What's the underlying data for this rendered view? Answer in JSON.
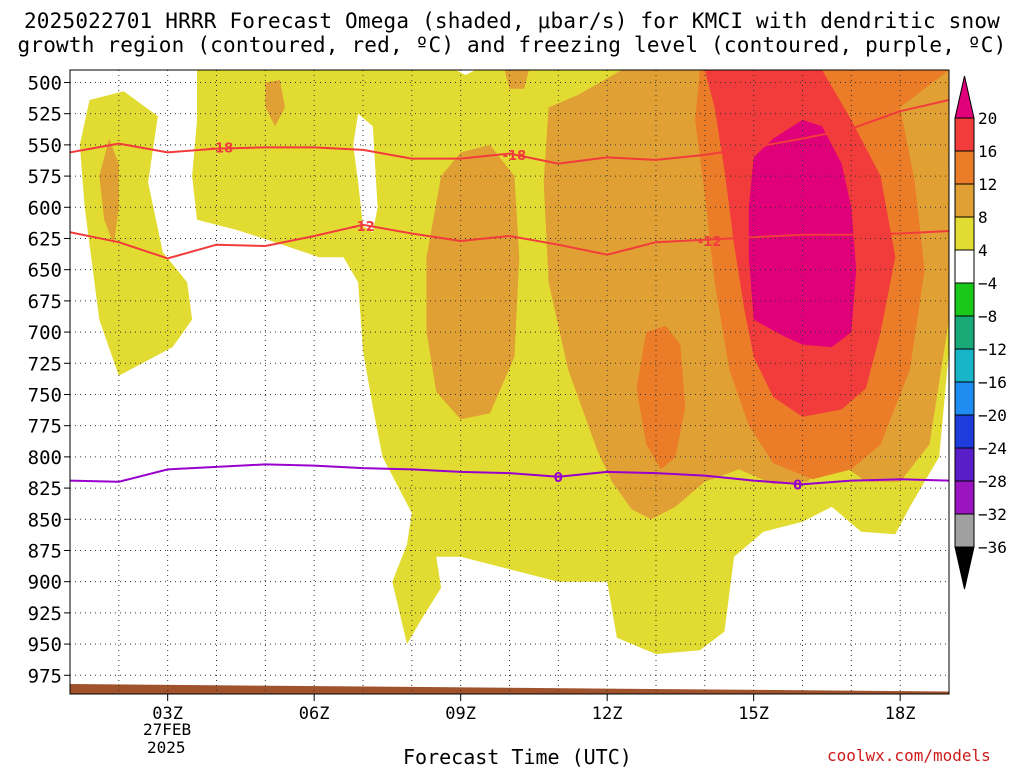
{
  "title": {
    "line1": "2025022701 HRRR Forecast Omega (shaded, μbar/s) for KMCI with dendritic snow",
    "line2": "growth region (contoured, red, ºC) and freezing level (contoured, purple, ºC)"
  },
  "x_axis_label": "Forecast Time (UTC)",
  "credit": "coolwx.com/models",
  "date": {
    "line1": "27FEB",
    "line2": "2025"
  },
  "colors": {
    "freezing_contour": "#9900cc",
    "snow_growth_contour": "#ff3333",
    "terrain": "#a0522d",
    "credit": "#cc1a1a"
  },
  "chart_data": {
    "type": "heatmap",
    "title": "2025022701 HRRR Forecast Omega (shaded, μbar/s) for KMCI with dendritic snow growth region (contoured, red, ºC) and freezing level (contoured, purple, ºC)",
    "xlabel": "Forecast Time (UTC)",
    "ylabel": "",
    "x_range_hours": [
      1,
      19
    ],
    "y_range_hpa": [
      490,
      990
    ],
    "y_scale": "linear, inverted (pressure decreasing upward)",
    "grid": true,
    "x_ticks": [
      {
        "hour": 3,
        "label": "03Z"
      },
      {
        "hour": 6,
        "label": "06Z"
      },
      {
        "hour": 9,
        "label": "09Z"
      },
      {
        "hour": 12,
        "label": "12Z"
      },
      {
        "hour": 15,
        "label": "15Z"
      },
      {
        "hour": 18,
        "label": "18Z"
      }
    ],
    "y_ticks": [
      500,
      525,
      550,
      575,
      600,
      625,
      650,
      675,
      700,
      725,
      750,
      775,
      800,
      825,
      850,
      875,
      900,
      925,
      950,
      975
    ],
    "colorbar": {
      "position": "right",
      "units": "μbar/s",
      "labels": [
        "20",
        "16",
        "12",
        "8",
        "4",
        "−4",
        "−8",
        "−12",
        "−16",
        "−20",
        "−24",
        "−28",
        "−32",
        "−36"
      ],
      "bins": [
        {
          "range": ">20",
          "color": "#e0007a"
        },
        {
          "range": "16 to 20",
          "color": "#f23c3c"
        },
        {
          "range": "12 to 16",
          "color": "#ec7d28"
        },
        {
          "range": "8 to 12",
          "color": "#e0a034"
        },
        {
          "range": "4 to 8",
          "color": "#e2dc32"
        },
        {
          "range": "-4 to 4",
          "color": "#ffffff"
        },
        {
          "range": "-8 to -4",
          "color": "#1ac81a"
        },
        {
          "range": "-12 to -8",
          "color": "#1aaa78"
        },
        {
          "range": "-16 to -12",
          "color": "#18b4c8"
        },
        {
          "range": "-20 to -16",
          "color": "#1e8cf0"
        },
        {
          "range": "-24 to -20",
          "color": "#1e3cdc"
        },
        {
          "range": "-28 to -24",
          "color": "#5a1ec8"
        },
        {
          "range": "-32 to -28",
          "color": "#9a14c0"
        },
        {
          "range": "-36 to -32",
          "color": "#a0a0a0"
        },
        {
          "range": "<-36",
          "color": "#000000"
        }
      ]
    },
    "regions": [
      {
        "value_bin": "4 to 8",
        "color": "#e2dc32",
        "points": [
          [
            1.4,
            514
          ],
          [
            2.1,
            507
          ],
          [
            2.8,
            527
          ],
          [
            2.6,
            580
          ],
          [
            2.9,
            636
          ],
          [
            3.4,
            660
          ],
          [
            3.5,
            690
          ],
          [
            3.1,
            712
          ],
          [
            2.0,
            735
          ],
          [
            1.6,
            690
          ],
          [
            1.3,
            600
          ],
          [
            1.2,
            550
          ]
        ]
      },
      {
        "value_bin": "4 to 8",
        "color": "#e2dc32",
        "points": [
          [
            3.6,
            490
          ],
          [
            8.9,
            490
          ],
          [
            9.1,
            494
          ],
          [
            9.3,
            490
          ],
          [
            19.0,
            490
          ],
          [
            19.0,
            715
          ],
          [
            18.8,
            800
          ],
          [
            18.2,
            840
          ],
          [
            17.9,
            862
          ],
          [
            17.2,
            860
          ],
          [
            16.6,
            840
          ],
          [
            16.0,
            852
          ],
          [
            15.2,
            860
          ],
          [
            14.6,
            880
          ],
          [
            14.4,
            940
          ],
          [
            13.9,
            955
          ],
          [
            13.0,
            958
          ],
          [
            12.2,
            945
          ],
          [
            12.0,
            900
          ],
          [
            11.0,
            900
          ],
          [
            10.0,
            890
          ],
          [
            9.0,
            880
          ],
          [
            8.5,
            880
          ],
          [
            8.6,
            905
          ],
          [
            8.2,
            930
          ],
          [
            7.9,
            950
          ],
          [
            7.6,
            900
          ],
          [
            7.9,
            870
          ],
          [
            8.0,
            845
          ],
          [
            7.4,
            800
          ],
          [
            7.2,
            760
          ],
          [
            7.0,
            715
          ],
          [
            6.9,
            660
          ],
          [
            6.6,
            640
          ],
          [
            6.1,
            640
          ],
          [
            5.2,
            628
          ],
          [
            4.4,
            618
          ],
          [
            3.6,
            610
          ],
          [
            3.5,
            575
          ],
          [
            3.6,
            530
          ]
        ]
      },
      {
        "value_bin": "-4 to 4",
        "color": "#ffffff",
        "points": [
          [
            6.9,
            525
          ],
          [
            7.2,
            535
          ],
          [
            7.3,
            600
          ],
          [
            7.2,
            620
          ],
          [
            7.0,
            615
          ],
          [
            6.9,
            580
          ],
          [
            6.8,
            550
          ]
        ]
      },
      {
        "value_bin": "8 to 12",
        "color": "#e0a034",
        "points": [
          [
            1.8,
            545
          ],
          [
            2.0,
            565
          ],
          [
            2.0,
            600
          ],
          [
            1.9,
            630
          ],
          [
            1.7,
            610
          ],
          [
            1.6,
            575
          ]
        ]
      },
      {
        "value_bin": "8 to 12",
        "color": "#e0a034",
        "points": [
          [
            5.0,
            500
          ],
          [
            5.3,
            498
          ],
          [
            5.4,
            520
          ],
          [
            5.2,
            535
          ],
          [
            5.0,
            520
          ]
        ]
      },
      {
        "value_bin": "8 to 12",
        "color": "#e0a034",
        "points": [
          [
            9.9,
            490
          ],
          [
            10.4,
            490
          ],
          [
            10.3,
            505
          ],
          [
            10.0,
            505
          ]
        ]
      },
      {
        "value_bin": "8 to 12",
        "color": "#e0a034",
        "points": [
          [
            8.6,
            575
          ],
          [
            9.0,
            556
          ],
          [
            9.6,
            550
          ],
          [
            10.1,
            575
          ],
          [
            10.2,
            640
          ],
          [
            10.1,
            720
          ],
          [
            9.6,
            765
          ],
          [
            9.0,
            770
          ],
          [
            8.5,
            748
          ],
          [
            8.3,
            700
          ],
          [
            8.3,
            640
          ]
        ]
      },
      {
        "value_bin": "8 to 12",
        "color": "#e0a034",
        "points": [
          [
            10.8,
            520
          ],
          [
            11.4,
            510
          ],
          [
            12.3,
            490
          ],
          [
            19.0,
            490
          ],
          [
            19.0,
            690
          ],
          [
            18.6,
            790
          ],
          [
            18.0,
            820
          ],
          [
            17.3,
            820
          ],
          [
            16.6,
            800
          ],
          [
            16.1,
            820
          ],
          [
            15.4,
            822
          ],
          [
            14.7,
            810
          ],
          [
            14.0,
            820
          ],
          [
            13.4,
            840
          ],
          [
            12.9,
            850
          ],
          [
            12.5,
            842
          ],
          [
            12.1,
            820
          ],
          [
            11.8,
            795
          ],
          [
            11.2,
            730
          ],
          [
            10.8,
            660
          ],
          [
            10.7,
            580
          ]
        ]
      },
      {
        "value_bin": "12 to 16",
        "color": "#ec7d28",
        "points": [
          [
            13.9,
            490
          ],
          [
            19.0,
            490
          ],
          [
            18.0,
            520
          ],
          [
            18.3,
            580
          ],
          [
            18.5,
            650
          ],
          [
            18.2,
            730
          ],
          [
            17.6,
            790
          ],
          [
            17.0,
            810
          ],
          [
            16.2,
            818
          ],
          [
            15.4,
            805
          ],
          [
            14.9,
            775
          ],
          [
            14.5,
            730
          ],
          [
            14.2,
            660
          ],
          [
            14.0,
            590
          ],
          [
            13.8,
            530
          ]
        ]
      },
      {
        "value_bin": "12 to 16",
        "color": "#ec7d28",
        "points": [
          [
            12.8,
            700
          ],
          [
            13.2,
            695
          ],
          [
            13.5,
            710
          ],
          [
            13.6,
            760
          ],
          [
            13.4,
            800
          ],
          [
            13.1,
            810
          ],
          [
            12.8,
            790
          ],
          [
            12.6,
            745
          ]
        ]
      },
      {
        "value_bin": "16 to 20",
        "color": "#f23c3c",
        "points": [
          [
            14.0,
            490
          ],
          [
            16.4,
            490
          ],
          [
            17.0,
            530
          ],
          [
            17.6,
            575
          ],
          [
            17.9,
            640
          ],
          [
            17.6,
            700
          ],
          [
            17.3,
            745
          ],
          [
            16.8,
            762
          ],
          [
            16.0,
            768
          ],
          [
            15.4,
            752
          ],
          [
            15.0,
            720
          ],
          [
            14.8,
            680
          ],
          [
            14.6,
            630
          ],
          [
            14.4,
            570
          ],
          [
            14.2,
            520
          ]
        ]
      },
      {
        "value_bin": ">20",
        "color": "#e0007a",
        "points": [
          [
            15.0,
            560
          ],
          [
            15.4,
            545
          ],
          [
            16.0,
            530
          ],
          [
            16.4,
            535
          ],
          [
            16.8,
            565
          ],
          [
            17.0,
            600
          ],
          [
            17.1,
            650
          ],
          [
            17.0,
            700
          ],
          [
            16.6,
            712
          ],
          [
            16.0,
            710
          ],
          [
            15.6,
            703
          ],
          [
            15.0,
            690
          ],
          [
            14.9,
            640
          ],
          [
            14.9,
            600
          ]
        ]
      }
    ],
    "terrain_pressure_hpa": [
      {
        "hour": 1.0,
        "p": 982
      },
      {
        "hour": 19.0,
        "p": 988
      }
    ],
    "contours": [
      {
        "group": "dendritic snow growth region",
        "color": "#f23c3c",
        "level": "-18",
        "points": [
          [
            1,
            556
          ],
          [
            2,
            549
          ],
          [
            3,
            556
          ],
          [
            4,
            553
          ],
          [
            5,
            552
          ],
          [
            6,
            552
          ],
          [
            7,
            554
          ],
          [
            8,
            561
          ],
          [
            9,
            561
          ],
          [
            10,
            557
          ],
          [
            11,
            565
          ],
          [
            12,
            560
          ],
          [
            13,
            562
          ],
          [
            14,
            558
          ],
          [
            15,
            552
          ],
          [
            16,
            545
          ],
          [
            17,
            537
          ],
          [
            18,
            523
          ],
          [
            19,
            514
          ]
        ]
      },
      {
        "group": "dendritic snow growth region",
        "color": "#f23c3c",
        "level": "-12",
        "points": [
          [
            1,
            620
          ],
          [
            2,
            628
          ],
          [
            3,
            641
          ],
          [
            4,
            630
          ],
          [
            5,
            631
          ],
          [
            6,
            623
          ],
          [
            7,
            614
          ],
          [
            8,
            621
          ],
          [
            9,
            627
          ],
          [
            10,
            623
          ],
          [
            11,
            630
          ],
          [
            12,
            638
          ],
          [
            13,
            628
          ],
          [
            14,
            626
          ],
          [
            15,
            624
          ],
          [
            16,
            622
          ],
          [
            17,
            622
          ],
          [
            18,
            621
          ],
          [
            19,
            619
          ]
        ]
      },
      {
        "group": "freezing level",
        "color": "#9900cc",
        "level": "0",
        "points": [
          [
            1,
            819
          ],
          [
            2,
            820
          ],
          [
            3,
            810
          ],
          [
            4,
            808
          ],
          [
            5,
            806
          ],
          [
            6,
            807
          ],
          [
            7,
            809
          ],
          [
            8,
            810
          ],
          [
            9,
            812
          ],
          [
            10,
            813
          ],
          [
            11,
            816
          ],
          [
            12,
            812
          ],
          [
            13,
            813
          ],
          [
            14,
            815
          ],
          [
            15,
            819
          ],
          [
            16,
            822
          ],
          [
            17,
            819
          ],
          [
            18,
            818
          ],
          [
            19,
            819
          ]
        ]
      }
    ],
    "contour_labels": [
      {
        "text": "-18",
        "hour": 4.1,
        "p": 552,
        "color": "#f23c3c"
      },
      {
        "text": "-18",
        "hour": 10.1,
        "p": 558,
        "color": "#f23c3c"
      },
      {
        "text": "-12",
        "hour": 7.0,
        "p": 615,
        "color": "#f23c3c"
      },
      {
        "text": "-12",
        "hour": 14.1,
        "p": 627,
        "color": "#f23c3c"
      },
      {
        "text": "0",
        "hour": 11.0,
        "p": 816,
        "color": "#9900cc"
      },
      {
        "text": "0",
        "hour": 15.9,
        "p": 822,
        "color": "#9900cc"
      }
    ]
  }
}
